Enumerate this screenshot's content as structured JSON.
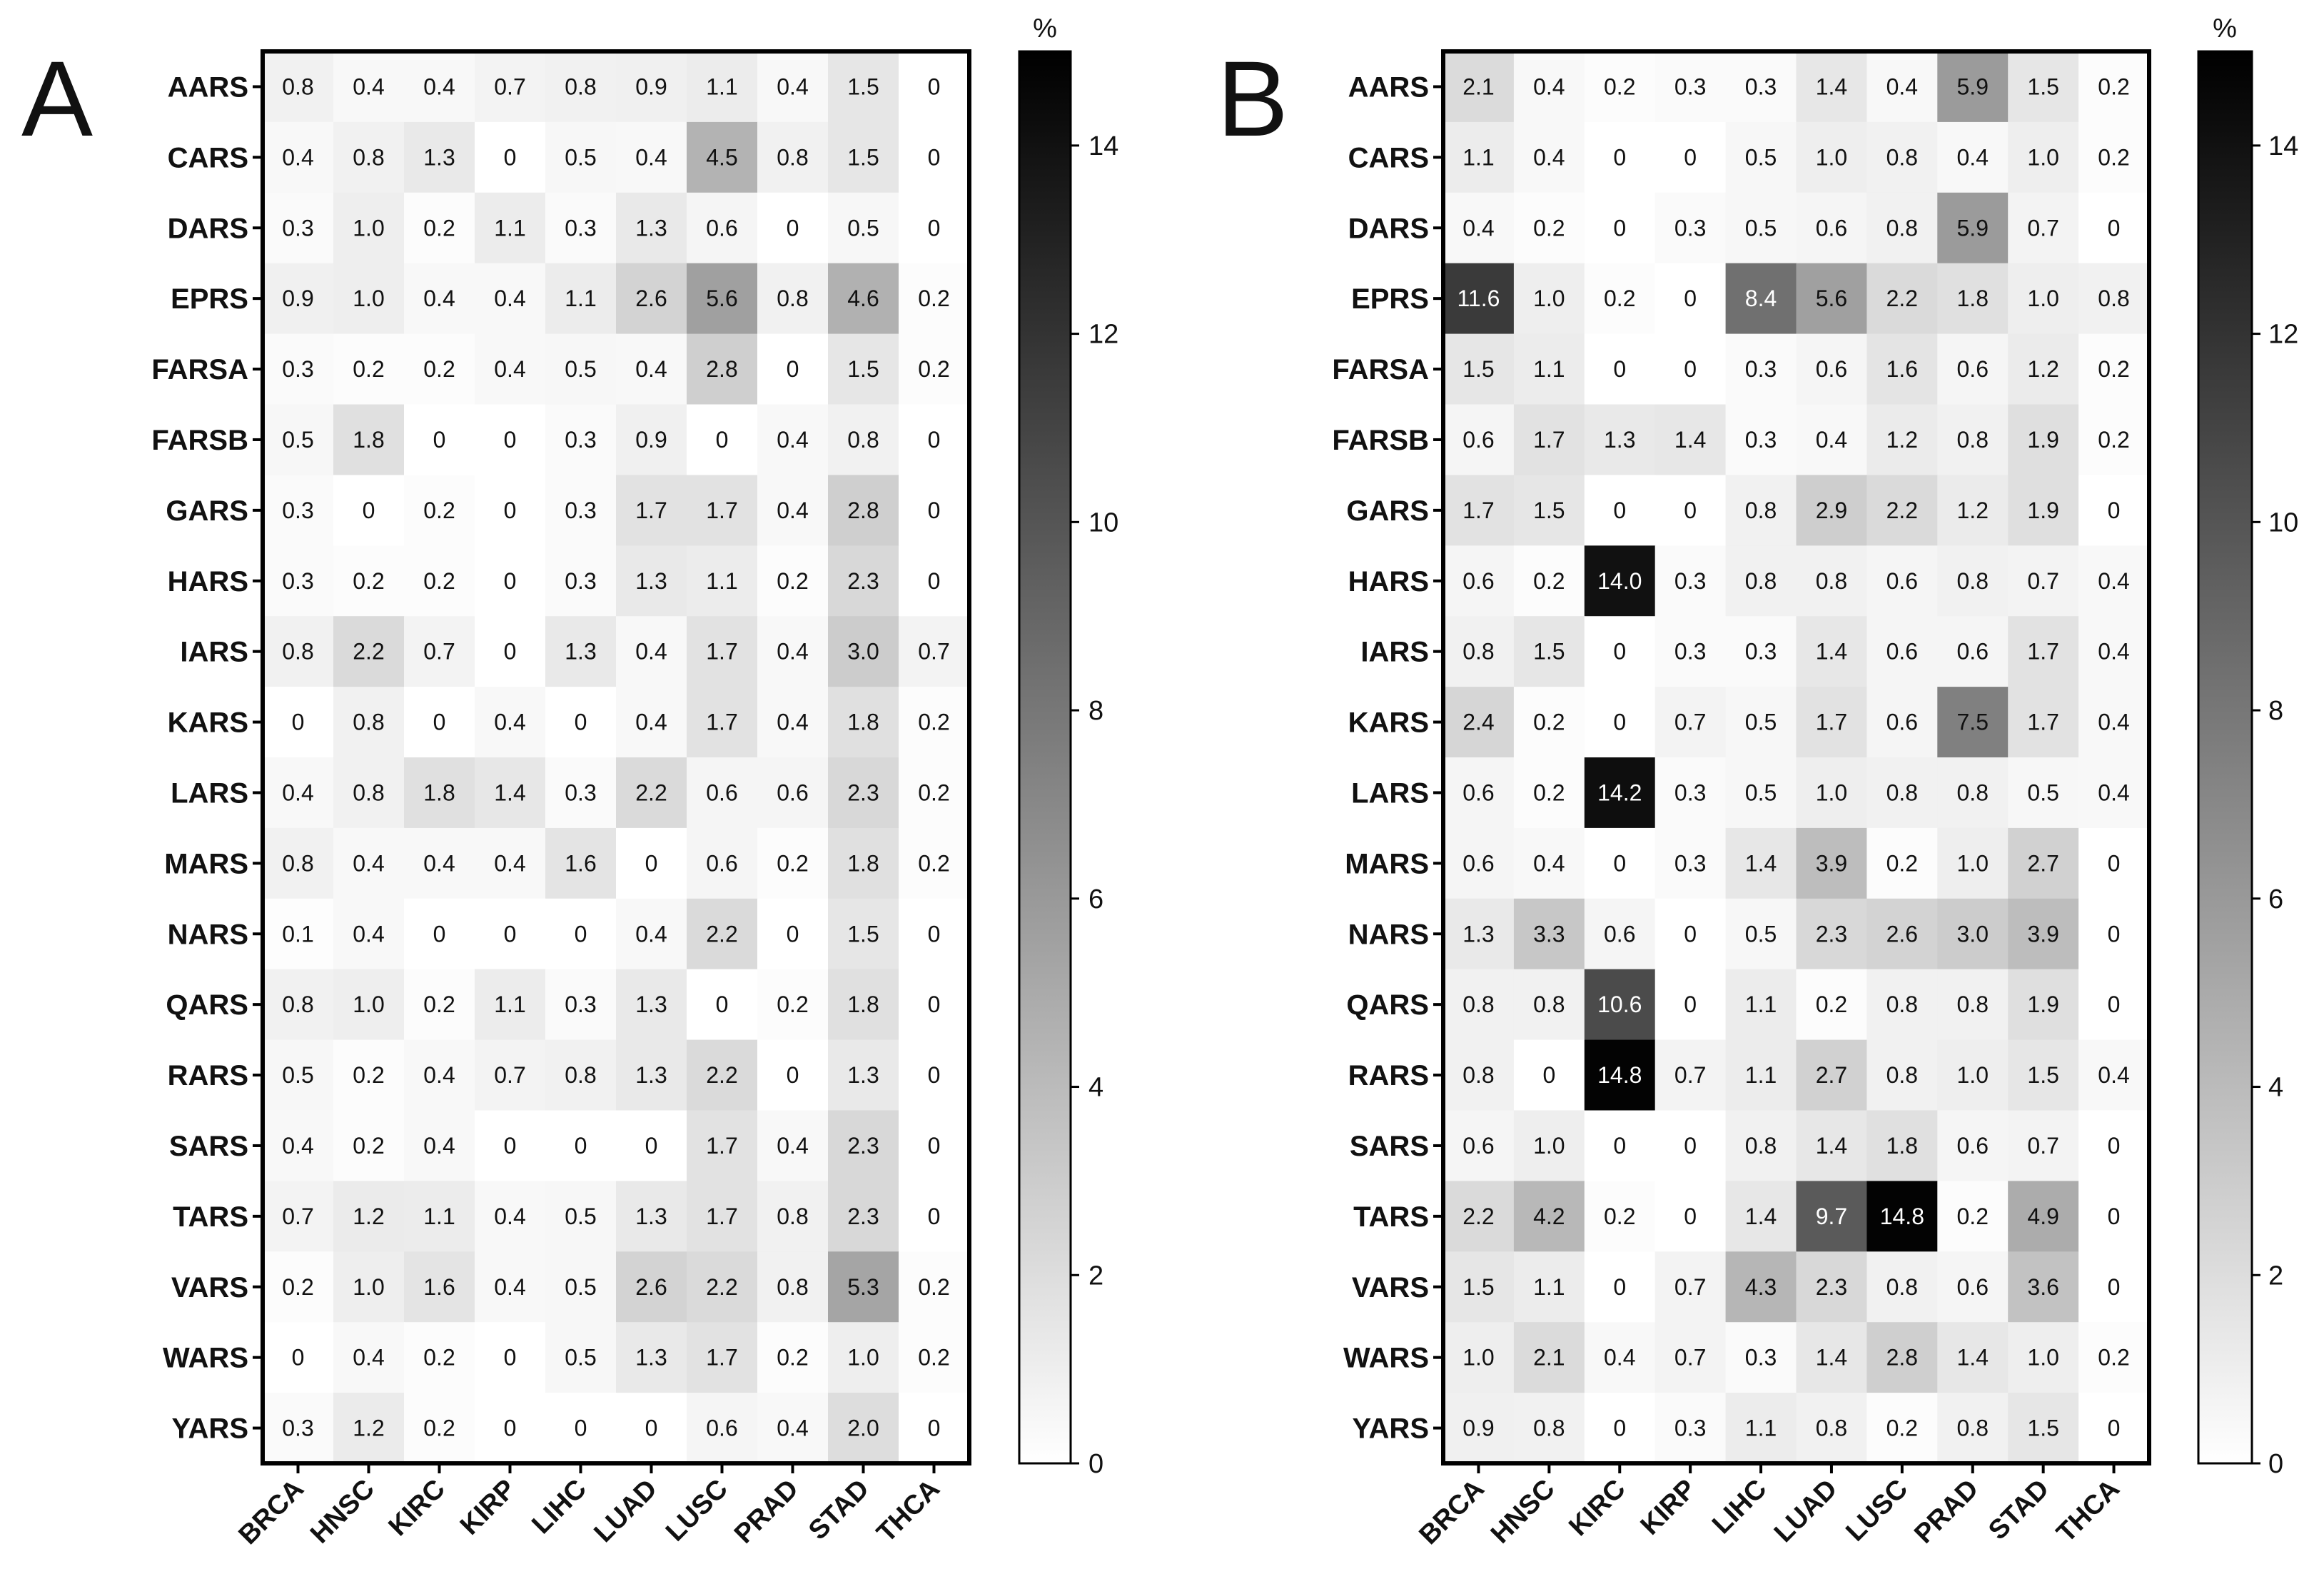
{
  "chart_data": [
    {
      "type": "heatmap",
      "panel_label": "A",
      "rows": [
        "AARS",
        "CARS",
        "DARS",
        "EPRS",
        "FARSA",
        "FARSB",
        "GARS",
        "HARS",
        "IARS",
        "KARS",
        "LARS",
        "MARS",
        "NARS",
        "QARS",
        "RARS",
        "SARS",
        "TARS",
        "VARS",
        "WARS",
        "YARS"
      ],
      "columns": [
        "BRCA",
        "HNSC",
        "KIRC",
        "KIRP",
        "LIHC",
        "LUAD",
        "LUSC",
        "PRAD",
        "STAD",
        "THCA"
      ],
      "values": [
        [
          "0.8",
          "0.4",
          "0.4",
          "0.7",
          "0.8",
          "0.9",
          "1.1",
          "0.4",
          "1.5",
          "0"
        ],
        [
          "0.4",
          "0.8",
          "1.3",
          "0",
          "0.5",
          "0.4",
          "4.5",
          "0.8",
          "1.5",
          "0"
        ],
        [
          "0.3",
          "1.0",
          "0.2",
          "1.1",
          "0.3",
          "1.3",
          "0.6",
          "0",
          "0.5",
          "0"
        ],
        [
          "0.9",
          "1.0",
          "0.4",
          "0.4",
          "1.1",
          "2.6",
          "5.6",
          "0.8",
          "4.6",
          "0.2"
        ],
        [
          "0.3",
          "0.2",
          "0.2",
          "0.4",
          "0.5",
          "0.4",
          "2.8",
          "0",
          "1.5",
          "0.2"
        ],
        [
          "0.5",
          "1.8",
          "0",
          "0",
          "0.3",
          "0.9",
          "0",
          "0.4",
          "0.8",
          "0"
        ],
        [
          "0.3",
          "0",
          "0.2",
          "0",
          "0.3",
          "1.7",
          "1.7",
          "0.4",
          "2.8",
          "0"
        ],
        [
          "0.3",
          "0.2",
          "0.2",
          "0",
          "0.3",
          "1.3",
          "1.1",
          "0.2",
          "2.3",
          "0"
        ],
        [
          "0.8",
          "2.2",
          "0.7",
          "0",
          "1.3",
          "0.4",
          "1.7",
          "0.4",
          "3.0",
          "0.7"
        ],
        [
          "0",
          "0.8",
          "0",
          "0.4",
          "0",
          "0.4",
          "1.7",
          "0.4",
          "1.8",
          "0.2"
        ],
        [
          "0.4",
          "0.8",
          "1.8",
          "1.4",
          "0.3",
          "2.2",
          "0.6",
          "0.6",
          "2.3",
          "0.2"
        ],
        [
          "0.8",
          "0.4",
          "0.4",
          "0.4",
          "1.6",
          "0",
          "0.6",
          "0.2",
          "1.8",
          "0.2"
        ],
        [
          "0.1",
          "0.4",
          "0",
          "0",
          "0",
          "0.4",
          "2.2",
          "0",
          "1.5",
          "0"
        ],
        [
          "0.8",
          "1.0",
          "0.2",
          "1.1",
          "0.3",
          "1.3",
          "0",
          "0.2",
          "1.8",
          "0"
        ],
        [
          "0.5",
          "0.2",
          "0.4",
          "0.7",
          "0.8",
          "1.3",
          "2.2",
          "0",
          "1.3",
          "0"
        ],
        [
          "0.4",
          "0.2",
          "0.4",
          "0",
          "0",
          "0",
          "1.7",
          "0.4",
          "2.3",
          "0"
        ],
        [
          "0.7",
          "1.2",
          "1.1",
          "0.4",
          "0.5",
          "1.3",
          "1.7",
          "0.8",
          "2.3",
          "0"
        ],
        [
          "0.2",
          "1.0",
          "1.6",
          "0.4",
          "0.5",
          "2.6",
          "2.2",
          "0.8",
          "5.3",
          "0.2"
        ],
        [
          "0",
          "0.4",
          "0.2",
          "0",
          "0.5",
          "1.3",
          "1.7",
          "0.2",
          "1.0",
          "0.2"
        ],
        [
          "0.3",
          "1.2",
          "0.2",
          "0",
          "0",
          "0",
          "0.6",
          "0.4",
          "2.0",
          "0"
        ]
      ],
      "colorbar": {
        "unit": "%",
        "range": [
          0,
          15
        ],
        "ticks": [
          "0",
          "2",
          "4",
          "6",
          "8",
          "10",
          "12",
          "14"
        ],
        "low_color": "#ffffff",
        "high_color": "#000000"
      }
    },
    {
      "type": "heatmap",
      "panel_label": "B",
      "rows": [
        "AARS",
        "CARS",
        "DARS",
        "EPRS",
        "FARSA",
        "FARSB",
        "GARS",
        "HARS",
        "IARS",
        "KARS",
        "LARS",
        "MARS",
        "NARS",
        "QARS",
        "RARS",
        "SARS",
        "TARS",
        "VARS",
        "WARS",
        "YARS"
      ],
      "columns": [
        "BRCA",
        "HNSC",
        "KIRC",
        "KIRP",
        "LIHC",
        "LUAD",
        "LUSC",
        "PRAD",
        "STAD",
        "THCA"
      ],
      "values": [
        [
          "2.1",
          "0.4",
          "0.2",
          "0.3",
          "0.3",
          "1.4",
          "0.4",
          "5.9",
          "1.5",
          "0.2"
        ],
        [
          "1.1",
          "0.4",
          "0",
          "0",
          "0.5",
          "1.0",
          "0.8",
          "0.4",
          "1.0",
          "0.2"
        ],
        [
          "0.4",
          "0.2",
          "0",
          "0.3",
          "0.5",
          "0.6",
          "0.8",
          "5.9",
          "0.7",
          "0"
        ],
        [
          "11.6",
          "1.0",
          "0.2",
          "0",
          "8.4",
          "5.6",
          "2.2",
          "1.8",
          "1.0",
          "0.8"
        ],
        [
          "1.5",
          "1.1",
          "0",
          "0",
          "0.3",
          "0.6",
          "1.6",
          "0.6",
          "1.2",
          "0.2"
        ],
        [
          "0.6",
          "1.7",
          "1.3",
          "1.4",
          "0.3",
          "0.4",
          "1.2",
          "0.8",
          "1.9",
          "0.2"
        ],
        [
          "1.7",
          "1.5",
          "0",
          "0",
          "0.8",
          "2.9",
          "2.2",
          "1.2",
          "1.9",
          "0"
        ],
        [
          "0.6",
          "0.2",
          "14.0",
          "0.3",
          "0.8",
          "0.8",
          "0.6",
          "0.8",
          "0.7",
          "0.4"
        ],
        [
          "0.8",
          "1.5",
          "0",
          "0.3",
          "0.3",
          "1.4",
          "0.6",
          "0.6",
          "1.7",
          "0.4"
        ],
        [
          "2.4",
          "0.2",
          "0",
          "0.7",
          "0.5",
          "1.7",
          "0.6",
          "7.5",
          "1.7",
          "0.4"
        ],
        [
          "0.6",
          "0.2",
          "14.2",
          "0.3",
          "0.5",
          "1.0",
          "0.8",
          "0.8",
          "0.5",
          "0.4"
        ],
        [
          "0.6",
          "0.4",
          "0",
          "0.3",
          "1.4",
          "3.9",
          "0.2",
          "1.0",
          "2.7",
          "0"
        ],
        [
          "1.3",
          "3.3",
          "0.6",
          "0",
          "0.5",
          "2.3",
          "2.6",
          "3.0",
          "3.9",
          "0"
        ],
        [
          "0.8",
          "0.8",
          "10.6",
          "0",
          "1.1",
          "0.2",
          "0.8",
          "0.8",
          "1.9",
          "0"
        ],
        [
          "0.8",
          "0",
          "14.8",
          "0.7",
          "1.1",
          "2.7",
          "0.8",
          "1.0",
          "1.5",
          "0.4"
        ],
        [
          "0.6",
          "1.0",
          "0",
          "0",
          "0.8",
          "1.4",
          "1.8",
          "0.6",
          "0.7",
          "0"
        ],
        [
          "2.2",
          "4.2",
          "0.2",
          "0",
          "1.4",
          "9.7",
          "14.8",
          "0.2",
          "4.9",
          "0"
        ],
        [
          "1.5",
          "1.1",
          "0",
          "0.7",
          "4.3",
          "2.3",
          "0.8",
          "0.6",
          "3.6",
          "0"
        ],
        [
          "1.0",
          "2.1",
          "0.4",
          "0.7",
          "0.3",
          "1.4",
          "2.8",
          "1.4",
          "1.0",
          "0.2"
        ],
        [
          "0.9",
          "0.8",
          "0",
          "0.3",
          "1.1",
          "0.8",
          "0.2",
          "0.8",
          "1.5",
          "0"
        ]
      ],
      "colorbar": {
        "unit": "%",
        "range": [
          0,
          15
        ],
        "ticks": [
          "0",
          "2",
          "4",
          "6",
          "8",
          "10",
          "12",
          "14"
        ],
        "low_color": "#ffffff",
        "high_color": "#000000"
      }
    }
  ]
}
